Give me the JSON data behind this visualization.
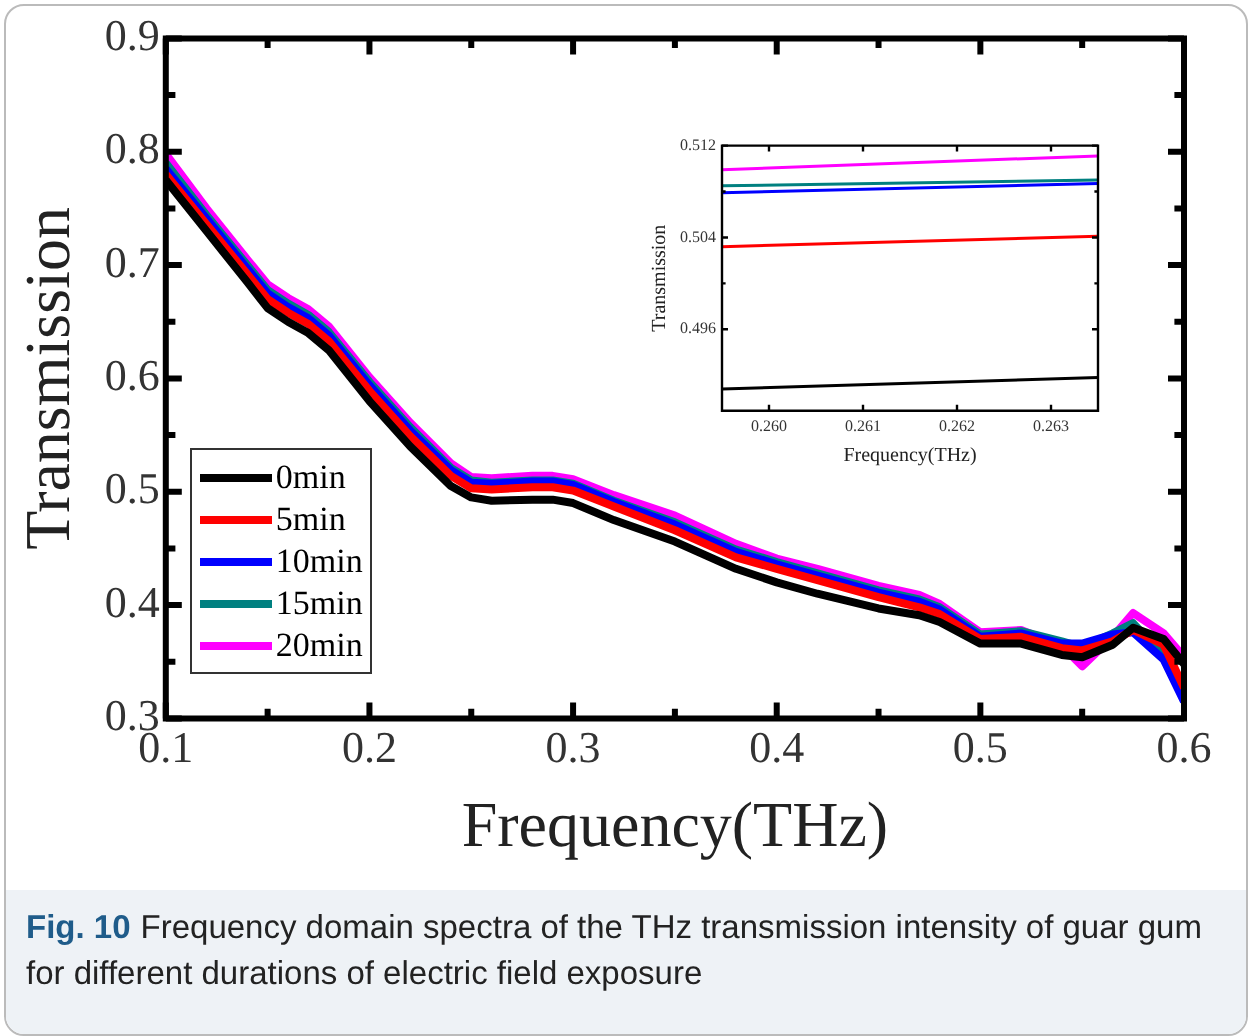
{
  "chart_data": [
    {
      "type": "line",
      "xlabel": "Frequency(THz)",
      "ylabel": "Transmission",
      "legend": "bottom left",
      "grid": false,
      "marker": "none",
      "line_style": "solid",
      "x": [
        0.1,
        0.12,
        0.14,
        0.15,
        0.16,
        0.17,
        0.18,
        0.2,
        0.22,
        0.24,
        0.25,
        0.26,
        0.28,
        0.29,
        0.3,
        0.32,
        0.35,
        0.38,
        0.4,
        0.42,
        0.45,
        0.47,
        0.48,
        0.5,
        0.52,
        0.54,
        0.55,
        0.565,
        0.575,
        0.59,
        0.6
      ],
      "xlim": [
        0.1,
        0.6
      ],
      "xticks": [
        0.1,
        {
          "value": 0.15,
          "label": null
        },
        0.2,
        {
          "value": 0.25,
          "label": null
        },
        0.3,
        {
          "value": 0.35,
          "label": null
        },
        0.4,
        {
          "value": 0.45,
          "label": null
        },
        0.5,
        {
          "value": 0.55,
          "label": null
        },
        0.6
      ],
      "ylim": [
        0.3,
        0.9
      ],
      "yticks": [
        0.3,
        {
          "value": 0.35,
          "label": null
        },
        0.4,
        {
          "value": 0.45,
          "label": null
        },
        0.5,
        {
          "value": 0.55,
          "label": null
        },
        0.6,
        {
          "value": 0.65,
          "label": null
        },
        0.7,
        {
          "value": 0.75,
          "label": null
        },
        0.8,
        {
          "value": 0.85,
          "label": null
        },
        0.9
      ],
      "series": [
        {
          "name": "0min",
          "color": "#000000",
          "values": [
            0.775,
            0.73,
            0.685,
            0.662,
            0.65,
            0.64,
            0.625,
            0.58,
            0.54,
            0.505,
            0.495,
            0.492,
            0.493,
            0.493,
            0.49,
            0.475,
            0.456,
            0.432,
            0.42,
            0.41,
            0.397,
            0.391,
            0.385,
            0.366,
            0.366,
            0.356,
            0.354,
            0.365,
            0.38,
            0.37,
            0.348
          ]
        },
        {
          "name": "5min",
          "color": "#ff0000",
          "values": [
            0.78,
            0.736,
            0.692,
            0.67,
            0.658,
            0.648,
            0.633,
            0.589,
            0.549,
            0.514,
            0.503,
            0.502,
            0.504,
            0.504,
            0.501,
            0.487,
            0.466,
            0.442,
            0.432,
            0.422,
            0.407,
            0.398,
            0.392,
            0.37,
            0.372,
            0.362,
            0.36,
            0.368,
            0.378,
            0.365,
            0.327
          ]
        },
        {
          "name": "10min",
          "color": "#0000ff",
          "values": [
            0.785,
            0.741,
            0.697,
            0.675,
            0.663,
            0.653,
            0.638,
            0.594,
            0.554,
            0.519,
            0.508,
            0.507,
            0.509,
            0.509,
            0.506,
            0.491,
            0.471,
            0.447,
            0.436,
            0.426,
            0.411,
            0.403,
            0.396,
            0.372,
            0.375,
            0.366,
            0.366,
            0.374,
            0.376,
            0.352,
            0.315
          ]
        },
        {
          "name": "15min",
          "color": "#008080",
          "values": [
            0.79,
            0.744,
            0.7,
            0.678,
            0.666,
            0.656,
            0.641,
            0.597,
            0.557,
            0.521,
            0.51,
            0.508,
            0.51,
            0.51,
            0.507,
            0.492,
            0.473,
            0.449,
            0.438,
            0.428,
            0.413,
            0.405,
            0.398,
            0.374,
            0.377,
            0.368,
            0.363,
            0.375,
            0.384,
            0.355,
            0.321
          ]
        },
        {
          "name": "20min",
          "color": "#ff00ff",
          "values": [
            0.798,
            0.75,
            0.705,
            0.683,
            0.671,
            0.661,
            0.646,
            0.601,
            0.561,
            0.525,
            0.513,
            0.512,
            0.514,
            0.514,
            0.511,
            0.497,
            0.479,
            0.454,
            0.441,
            0.432,
            0.417,
            0.409,
            0.401,
            0.376,
            0.378,
            0.364,
            0.346,
            0.372,
            0.393,
            0.375,
            0.354
          ]
        }
      ],
      "annotations": [
        "Fig. 10",
        "Frequency domain spectra of the THz transmission intensity of guar gum for different durations of electric field exposure"
      ]
    },
    {
      "type": "line",
      "xlabel": "Frequency(THz)",
      "ylabel": "Transmission",
      "grid": false,
      "marker": "none",
      "line_style": "solid",
      "x": [
        0.2595,
        0.2635
      ],
      "xlim": [
        0.2595,
        0.2635
      ],
      "xticks": [
        {
          "value": 0.26,
          "label": "0.260"
        },
        0.261,
        0.262,
        0.263
      ],
      "ylim": [
        0.4889,
        0.512
      ],
      "yticks": [
        0.496,
        {
          "value": 0.5,
          "label": null
        },
        0.504,
        {
          "value": 0.508,
          "label": null
        },
        0.512
      ],
      "series": [
        {
          "color": "#000000",
          "values": [
            0.4908,
            0.4918
          ]
        },
        {
          "color": "#ff0000",
          "values": [
            0.5032,
            0.5041
          ]
        },
        {
          "color": "#0000ff",
          "values": [
            0.5079,
            0.5087
          ]
        },
        {
          "color": "#008080",
          "values": [
            0.5085,
            0.509
          ]
        },
        {
          "color": "#ff00ff",
          "values": [
            0.5099,
            0.5111
          ]
        }
      ]
    }
  ]
}
